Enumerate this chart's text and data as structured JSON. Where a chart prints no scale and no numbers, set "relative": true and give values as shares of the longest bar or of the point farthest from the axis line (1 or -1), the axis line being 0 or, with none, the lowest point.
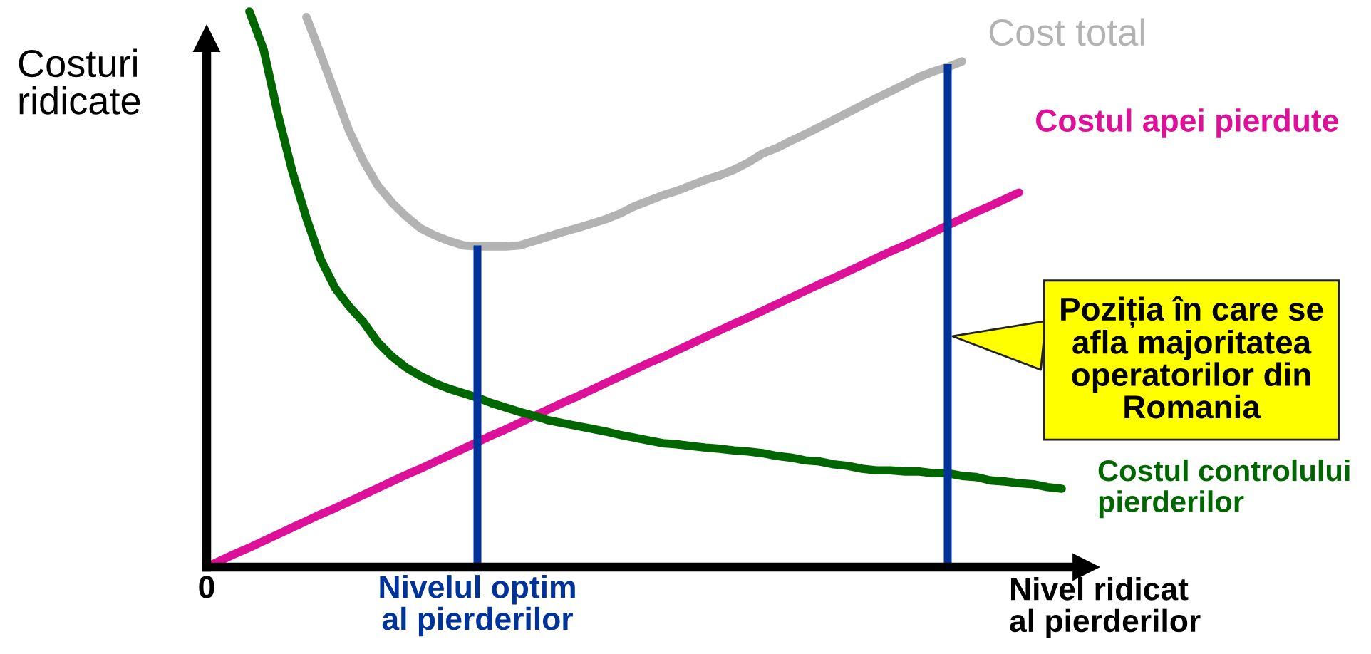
{
  "chart_data": {
    "type": "line",
    "relative": true,
    "xlabel": "Nivel ridicat\nal pierderilor",
    "ylabel": "Costuri\nridicate",
    "categories": [
      "0",
      null,
      null,
      null,
      null,
      null,
      null,
      null,
      null,
      null,
      null,
      null,
      null,
      null,
      null,
      null,
      null,
      null,
      null,
      "Nivelul optim\nal pierderilor",
      null,
      null,
      null,
      null,
      null,
      null,
      null,
      null,
      null,
      null,
      null,
      null,
      null,
      null,
      null,
      null,
      null,
      null,
      null,
      null,
      null,
      null,
      null,
      null,
      null,
      null,
      null,
      null,
      null,
      null,
      null,
      null,
      null,
      null,
      null,
      null,
      null,
      null,
      null,
      null,
      null
    ],
    "series": [
      {
        "name": "Cost total",
        "color": "#b3b3b3",
        "values": [
          null,
          null,
          null,
          null,
          null,
          null,
          null,
          0.99,
          0.923,
          0.854,
          0.785,
          0.731,
          0.687,
          0.656,
          0.631,
          0.61,
          0.597,
          0.587,
          0.579,
          0.577,
          0.577,
          0.577,
          0.579,
          0.587,
          0.595,
          0.603,
          0.61,
          0.618,
          0.626,
          0.636,
          0.649,
          0.659,
          0.669,
          0.677,
          0.687,
          0.697,
          0.705,
          0.715,
          0.728,
          0.744,
          0.754,
          0.767,
          0.779,
          0.792,
          0.805,
          0.818,
          0.831,
          0.844,
          0.856,
          0.869,
          0.882,
          0.892,
          0.9,
          0.91,
          null,
          null,
          null,
          null,
          null,
          null,
          null
        ]
      },
      {
        "name": "Costul apei pierdute",
        "color": "#dd1199",
        "values": [
          0.0,
          0.012,
          0.024,
          0.035,
          0.047,
          0.059,
          0.071,
          0.083,
          0.095,
          0.106,
          0.118,
          0.13,
          0.142,
          0.154,
          0.166,
          0.177,
          0.189,
          0.201,
          0.213,
          0.225,
          0.237,
          0.248,
          0.26,
          0.272,
          0.284,
          0.296,
          0.307,
          0.319,
          0.331,
          0.343,
          0.355,
          0.367,
          0.378,
          0.39,
          0.402,
          0.414,
          0.426,
          0.438,
          0.449,
          0.461,
          0.473,
          0.485,
          0.497,
          0.509,
          0.52,
          0.532,
          0.544,
          0.556,
          0.568,
          0.579,
          0.591,
          0.603,
          0.615,
          0.627,
          0.639,
          0.65,
          0.662,
          0.674,
          null,
          null,
          null
        ]
      },
      {
        "name": "Costul controlului\npierderilor",
        "color": "#006600",
        "values": [
          null,
          null,
          null,
          1.0,
          0.931,
          0.815,
          0.713,
          0.628,
          0.554,
          0.503,
          0.469,
          0.441,
          0.405,
          0.379,
          0.359,
          0.344,
          0.331,
          0.321,
          0.313,
          0.305,
          0.295,
          0.287,
          0.279,
          0.272,
          0.264,
          0.259,
          0.254,
          0.249,
          0.244,
          0.238,
          0.233,
          0.228,
          0.223,
          0.221,
          0.218,
          0.215,
          0.213,
          0.21,
          0.208,
          0.205,
          0.2,
          0.197,
          0.192,
          0.19,
          0.185,
          0.182,
          0.177,
          0.174,
          0.174,
          0.172,
          0.172,
          0.169,
          0.169,
          0.164,
          0.162,
          0.156,
          0.154,
          0.151,
          0.149,
          0.144,
          0.141
        ]
      },
      {
        "type": "bar",
        "color": "#003399",
        "values": [
          null,
          null,
          null,
          null,
          null,
          null,
          null,
          null,
          null,
          null,
          null,
          null,
          null,
          null,
          null,
          null,
          null,
          null,
          null,
          0.579,
          null,
          null,
          null,
          null,
          null,
          null,
          null,
          null,
          null,
          null,
          null,
          null,
          null,
          null,
          null,
          null,
          null,
          null,
          null,
          null,
          null,
          null,
          null,
          null,
          null,
          null,
          null,
          null,
          null,
          null,
          null,
          null,
          0.905,
          null,
          null,
          null,
          null,
          null,
          null,
          null,
          null
        ]
      }
    ],
    "annotations": [
      "Poziția în care se\nafla majoritatea\noperatorilor din\nRomania"
    ]
  }
}
